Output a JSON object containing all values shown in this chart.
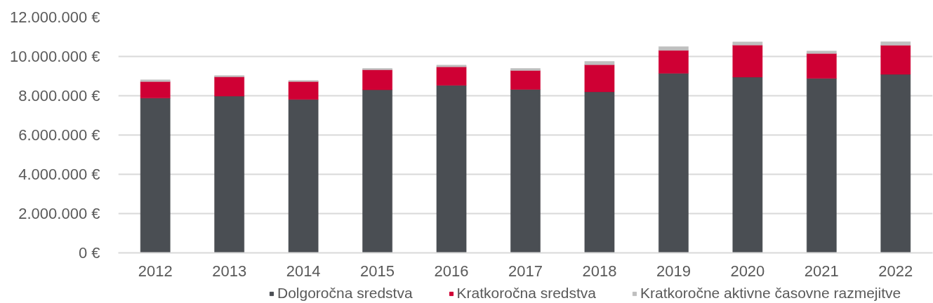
{
  "chart_data": {
    "type": "bar",
    "stacked": true,
    "categories": [
      "2012",
      "2013",
      "2014",
      "2015",
      "2016",
      "2017",
      "2018",
      "2019",
      "2020",
      "2021",
      "2022"
    ],
    "series": [
      {
        "name": "Dolgoročna sredstva",
        "color": "#4a4e53",
        "values": [
          7880000,
          7980000,
          7810000,
          8300000,
          8530000,
          8320000,
          8200000,
          9140000,
          8950000,
          8880000,
          9090000
        ]
      },
      {
        "name": "Kratkoročna sredstva",
        "color": "#cf0034",
        "values": [
          840000,
          980000,
          910000,
          1020000,
          940000,
          970000,
          1380000,
          1170000,
          1630000,
          1270000,
          1480000
        ]
      },
      {
        "name": "Kratkoročne aktivne časovne razmejitve",
        "color": "#bfbfbf",
        "values": [
          90000,
          70000,
          60000,
          70000,
          90000,
          100000,
          170000,
          190000,
          160000,
          130000,
          180000
        ]
      }
    ],
    "ylim": [
      0,
      12000000
    ],
    "yticks": [
      {
        "value": 0,
        "label": "0 €"
      },
      {
        "value": 2000000,
        "label": "2.000.000 €"
      },
      {
        "value": 4000000,
        "label": "4.000.000 €"
      },
      {
        "value": 6000000,
        "label": "6.000.000 €"
      },
      {
        "value": 8000000,
        "label": "8.000.000 €"
      },
      {
        "value": 10000000,
        "label": "10.000.000 €"
      },
      {
        "value": 12000000,
        "label": "12.000.000 €"
      }
    ],
    "grid": "y",
    "legend": "bottom"
  }
}
